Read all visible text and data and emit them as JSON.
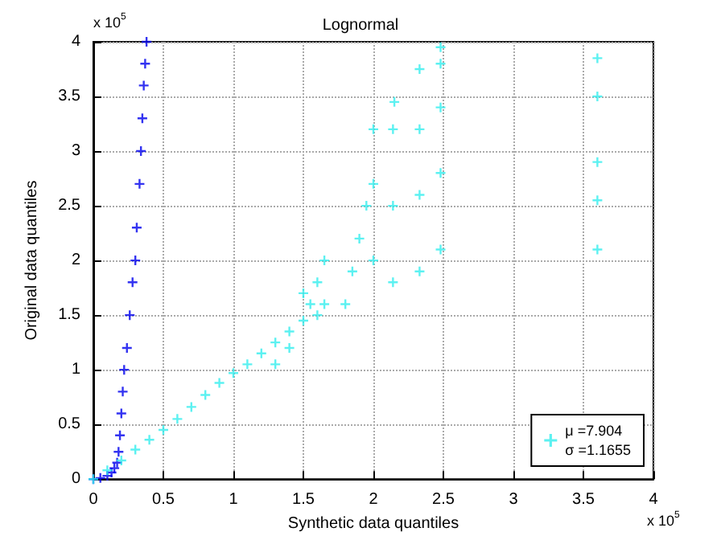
{
  "chart_data": {
    "type": "scatter",
    "title": "Lognormal",
    "xlabel": "Synthetic data quantiles",
    "ylabel": "Original data quantiles",
    "annotations": [
      "x 10$^{5}$",
      "x 10$^{5}$"
    ],
    "xlim": [
      0,
      4
    ],
    "xticks": [
      0,
      0.5,
      1,
      1.5,
      2,
      2.5,
      3,
      3.5,
      4
    ],
    "ylim": [
      0,
      4
    ],
    "yticks": [
      0,
      0.5,
      1,
      1.5,
      2,
      2.5,
      3,
      3.5,
      4
    ],
    "grid": true,
    "legend": "bottom right",
    "marker": "cross",
    "series": [
      {
        "color": "#0000ee",
        "x": [
          0,
          0.05,
          0.1,
          0.13,
          0.15,
          0.17,
          0.18,
          0.19,
          0.2,
          0.21,
          0.22,
          0.24,
          0.26,
          0.28,
          0.3,
          0.31,
          0.33,
          0.34,
          0.35,
          0.36,
          0.37,
          0.38
        ],
        "values": [
          0,
          0.01,
          0.03,
          0.06,
          0.1,
          0.15,
          0.25,
          0.4,
          0.6,
          0.8,
          1.0,
          1.2,
          1.5,
          1.8,
          2.0,
          2.3,
          2.7,
          3.0,
          3.3,
          3.6,
          3.8,
          4.0
        ]
      },
      {
        "name": "μ =7.904\nσ =1.1655",
        "color": "#33eeee",
        "x": [
          0,
          0.1,
          0.2,
          0.3,
          0.4,
          0.5,
          0.6,
          0.7,
          0.8,
          0.9,
          1,
          1.1,
          1.2,
          1.3,
          1.3,
          1.4,
          1.4,
          1.5,
          1.5,
          1.55,
          1.6,
          1.6,
          1.65,
          1.65,
          1.8,
          1.85,
          1.9,
          1.95,
          2.0,
          2.0,
          2.0,
          2.14,
          2.14,
          2.14,
          2.15,
          2.33,
          2.33,
          2.33,
          2.33,
          2.48,
          2.48,
          2.48,
          2.48,
          2.48,
          3.6,
          3.6,
          3.6,
          3.6,
          3.6
        ],
        "values": [
          0,
          0.08,
          0.17,
          0.27,
          0.36,
          0.45,
          0.55,
          0.66,
          0.77,
          0.88,
          0.97,
          1.05,
          1.15,
          1.25,
          1.05,
          1.35,
          1.2,
          1.45,
          1.7,
          1.6,
          1.5,
          1.8,
          1.6,
          2.0,
          1.6,
          1.9,
          2.2,
          2.5,
          2.0,
          2.7,
          3.2,
          1.8,
          2.5,
          3.2,
          3.45,
          1.9,
          2.6,
          3.2,
          3.75,
          2.1,
          2.8,
          3.4,
          3.8,
          3.95,
          2.1,
          2.55,
          2.9,
          3.5,
          3.85
        ]
      }
    ]
  }
}
